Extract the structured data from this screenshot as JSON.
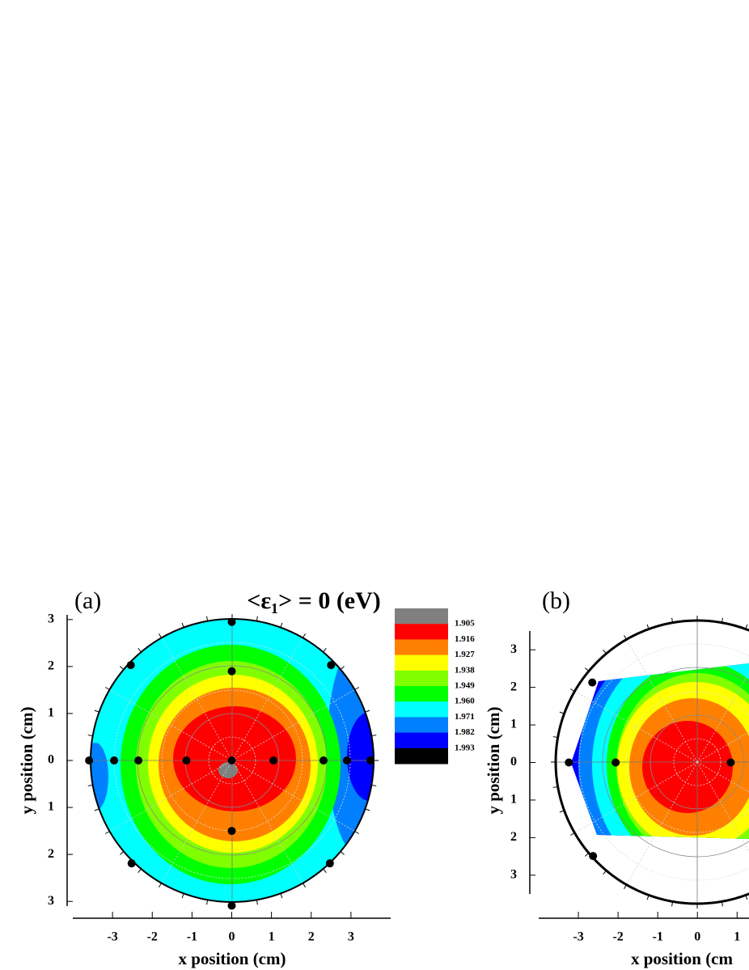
{
  "chart_data": [
    {
      "type": "contour",
      "panel_label": "(a)",
      "title": "<ε₁> = 0 (eV)",
      "x_label": "x position (cm)",
      "y_label": "y position (cm)",
      "xlim": [
        -4,
        4
      ],
      "xticks": [
        -3,
        -2,
        -1,
        0,
        1,
        2,
        3
      ],
      "ylim": [
        -3.1,
        3.1
      ],
      "yticks": [
        {
          "value": -3,
          "label": "3"
        },
        {
          "value": -2,
          "label": "2"
        },
        {
          "value": -1,
          "label": "1"
        },
        0,
        1,
        2,
        3
      ],
      "x": [
        0,
        -2.54,
        2.5,
        0,
        -3.59,
        -2.96,
        -2.35,
        -1.14,
        0,
        1.05,
        2.31,
        2.9,
        3.49,
        0,
        -2.52,
        2.47,
        0
      ],
      "y": [
        2.95,
        2.03,
        2.03,
        1.9,
        0,
        0,
        0,
        0,
        0,
        0,
        0,
        0,
        0,
        -1.5,
        -2.19,
        -2.19,
        -3.09
      ],
      "colors": [
        "#808080",
        "#ff0000",
        "#ff8000",
        "#ffff00",
        "#80ff00",
        "#00ff00",
        "#00ffff",
        "#0080ff",
        "#0000ff",
        "#000000"
      ],
      "levels": [
        1.905,
        1.916,
        1.927,
        1.938,
        1.949,
        {
          "value": 1.96,
          "label": "1.960"
        },
        1.971,
        1.982,
        1.993
      ]
    },
    {
      "type": "contour",
      "panel_label": "(b)",
      "x_label": "x position (cm",
      "y_label": "y position (cm)",
      "xlim": [
        -4,
        1.3
      ],
      "xticks": [
        -3,
        -2,
        -1,
        0,
        1
      ],
      "ylim": [
        -3.5,
        3.5
      ],
      "yticks": [
        {
          "value": -3,
          "label": "3"
        },
        {
          "value": -2,
          "label": "2"
        },
        {
          "value": -1,
          "label": "1"
        },
        0,
        1,
        2,
        3
      ],
      "x": [
        -2.65,
        -3.24,
        -2.06,
        0.84,
        -2.63
      ],
      "y": [
        2.13,
        0,
        0,
        0,
        -2.49
      ],
      "colors": [
        "#808080",
        "#ff0000",
        "#ff8000",
        "#ffff00",
        "#80ff00",
        "#00ff00",
        "#00ffff",
        "#0080ff",
        "#0000ff",
        "#000000"
      ]
    }
  ]
}
